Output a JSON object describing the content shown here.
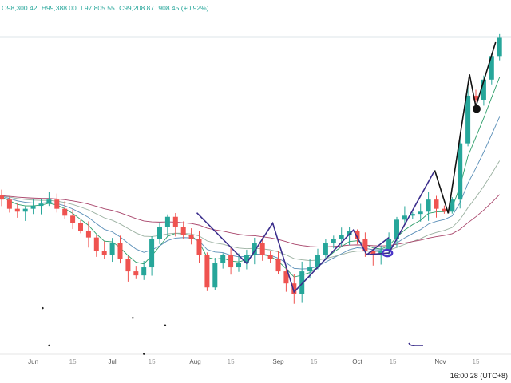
{
  "legend": {
    "open": "O98,300.42",
    "high": "H99,388.00",
    "low": "L97,805.55",
    "close": "C99,208.87",
    "change": "908.45 (+0.92%)",
    "color": "#26a69a"
  },
  "clock": "16:00:28 (UTC+8)",
  "chart_data": {
    "type": "candlestick",
    "title": "",
    "up_color": "#26a69a",
    "down_color": "#ef5350",
    "ylim": [
      44000,
      100000
    ],
    "x_ticks": [
      {
        "label": "Jun",
        "index": 4,
        "major": true
      },
      {
        "label": "15",
        "index": 9,
        "major": false
      },
      {
        "label": "Jul",
        "index": 14,
        "major": true
      },
      {
        "label": "15",
        "index": 19,
        "major": false
      },
      {
        "label": "Aug",
        "index": 24.5,
        "major": true
      },
      {
        "label": "15",
        "index": 29,
        "major": false
      },
      {
        "label": "Sep",
        "index": 35,
        "major": true
      },
      {
        "label": "15",
        "index": 39.5,
        "major": false
      },
      {
        "label": "Oct",
        "index": 45,
        "major": true
      },
      {
        "label": "15",
        "index": 49.5,
        "major": false
      },
      {
        "label": "Nov",
        "index": 55.5,
        "major": true
      },
      {
        "label": "15",
        "index": 60,
        "major": false
      }
    ],
    "closes": [
      70900,
      69300,
      68800,
      69300,
      69800,
      70200,
      70900,
      69300,
      68100,
      66800,
      65400,
      64300,
      61900,
      61200,
      63300,
      60500,
      58400,
      57700,
      59100,
      64000,
      66100,
      67900,
      66100,
      64700,
      64000,
      61200,
      55600,
      59800,
      61200,
      59100,
      59800,
      61200,
      63300,
      61200,
      60500,
      58400,
      56300,
      54500,
      58400,
      59100,
      61200,
      63300,
      64000,
      64700,
      65400,
      64000,
      61900,
      61200,
      61900,
      64000,
      67400,
      68100,
      68400,
      68800,
      70900,
      69300,
      68800,
      70900,
      80700,
      89000,
      88300,
      91800,
      95900,
      99209
    ],
    "moving_averages": [
      {
        "period": 5,
        "color": "#2e9e6a"
      },
      {
        "period": 10,
        "color": "#5a8fb8"
      },
      {
        "period": 20,
        "color": "#9ab0a0"
      },
      {
        "period": 40,
        "color": "#a8446a"
      }
    ],
    "drawings": [
      {
        "color": "#3b2e8c",
        "points": [
          [
            24.7,
            68600
          ],
          [
            31,
            59800
          ],
          [
            34.3,
            66800
          ],
          [
            37,
            54800
          ],
          [
            44.5,
            65600
          ],
          [
            46.2,
            61300
          ],
          [
            49,
            61600
          ],
          [
            54.8,
            76000
          ]
        ]
      },
      {
        "color": "#3b2e8c",
        "points": [
          [
            46.2,
            61300
          ],
          [
            49,
            64300
          ]
        ]
      },
      {
        "color": "#111111",
        "points": [
          [
            54.8,
            76000
          ],
          [
            56.5,
            68500
          ],
          [
            59.2,
            92700
          ],
          [
            60,
            87100
          ],
          [
            62.5,
            98300
          ]
        ]
      }
    ],
    "markers": [
      {
        "shape": "dot",
        "color": "#111111",
        "index": 60.1,
        "price": 86700
      },
      {
        "shape": "loop",
        "color": "#4a35c8",
        "index": 48.8,
        "price": 61600
      }
    ],
    "scatter_dots": [
      [
        5.2,
        52000
      ],
      [
        6,
        45500
      ],
      [
        16.6,
        50300
      ],
      [
        18,
        44000
      ],
      [
        20.7,
        49000
      ]
    ]
  }
}
